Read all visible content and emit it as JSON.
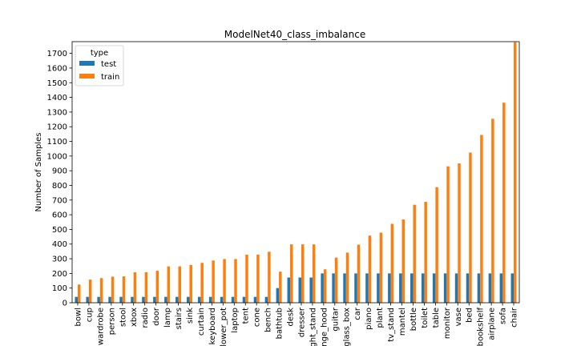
{
  "chart_data": {
    "type": "bar",
    "title": "ModelNet40_class_imbalance",
    "xlabel": "",
    "ylabel": "Number of Samples",
    "ylim": [
      0,
      1780
    ],
    "yticks": [
      0,
      100,
      200,
      300,
      400,
      500,
      600,
      700,
      800,
      900,
      1000,
      1100,
      1200,
      1300,
      1400,
      1500,
      1600,
      1700
    ],
    "grid": false,
    "legend": {
      "title": "type",
      "placement": "top-left"
    },
    "categories": [
      "bowl",
      "cup",
      "wardrobe",
      "person",
      "stool",
      "xbox",
      "radio",
      "door",
      "lamp",
      "stairs",
      "sink",
      "curtain",
      "keyboard",
      "flower_pot",
      "laptop",
      "tent",
      "cone",
      "bench",
      "bathtub",
      "desk",
      "dresser",
      "night_stand",
      "range_hood",
      "guitar",
      "glass_box",
      "car",
      "piano",
      "plant",
      "tv_stand",
      "mantel",
      "bottle",
      "toilet",
      "table",
      "monitor",
      "vase",
      "bed",
      "bookshelf",
      "airplane",
      "sofa",
      "chair"
    ],
    "series": [
      {
        "name": "test",
        "color": "#1f77b4",
        "values": [
          40,
          40,
          40,
          40,
          40,
          40,
          40,
          40,
          40,
          40,
          40,
          40,
          40,
          40,
          40,
          40,
          40,
          40,
          100,
          172,
          172,
          172,
          200,
          200,
          200,
          200,
          200,
          200,
          200,
          200,
          200,
          200,
          200,
          200,
          200,
          200,
          200,
          200,
          200,
          200
        ]
      },
      {
        "name": "train",
        "color": "#ff7f0e",
        "values": [
          124,
          158,
          168,
          178,
          180,
          208,
          208,
          218,
          248,
          248,
          258,
          272,
          288,
          298,
          298,
          328,
          328,
          348,
          212,
          398,
          398,
          398,
          228,
          308,
          342,
          396,
          458,
          478,
          538,
          568,
          668,
          688,
          788,
          930,
          950,
          1024,
          1144,
          1254,
          1364,
          1776
        ]
      }
    ]
  }
}
